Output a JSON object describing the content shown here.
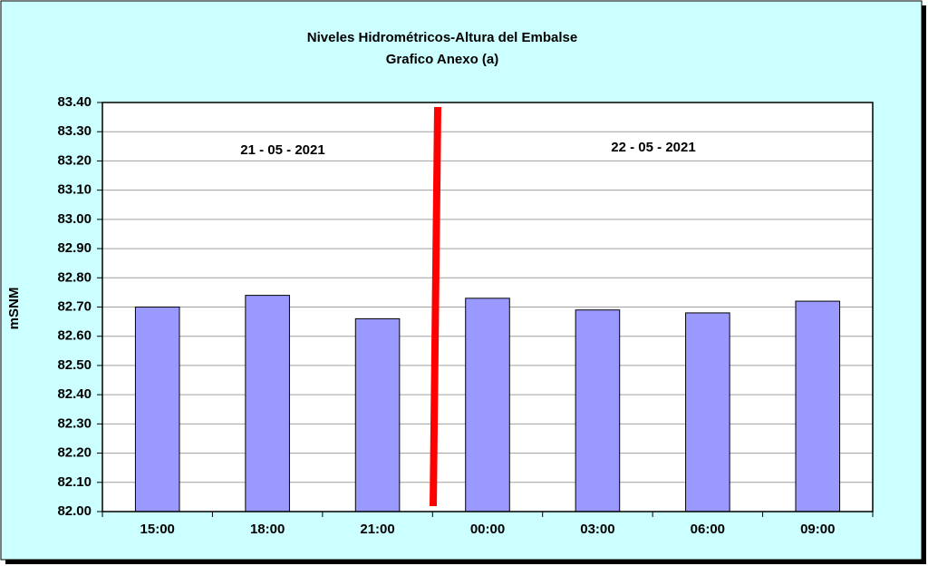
{
  "chart_data": {
    "type": "bar",
    "title": "Niveles Hidrométricos-Altura del Embalse",
    "subtitle": "Grafico Anexo (a)",
    "y_label": "mSNM",
    "annotations": [
      "21 - 05 - 2021",
      "22 - 05 - 2021"
    ],
    "categories": [
      "15:00",
      "18:00",
      "21:00",
      "00:00",
      "03:00",
      "06:00",
      "09:00"
    ],
    "values": [
      82.7,
      82.74,
      82.66,
      82.73,
      82.69,
      82.68,
      82.72
    ],
    "color": "#9999ff",
    "ylim": [
      82.0,
      83.4
    ],
    "yticks": [
      {
        "value": 82.0,
        "label": "82.00"
      },
      {
        "value": 82.1,
        "label": "82.10"
      },
      {
        "value": 82.2,
        "label": "82.20"
      },
      {
        "value": 82.3,
        "label": "82.30"
      },
      {
        "value": 82.4,
        "label": "82.40"
      },
      {
        "value": 82.5,
        "label": "82.50"
      },
      {
        "value": 82.6,
        "label": "82.60"
      },
      {
        "value": 82.7,
        "label": "82.70"
      },
      {
        "value": 82.8,
        "label": "82.80"
      },
      {
        "value": 82.9,
        "label": "82.90"
      },
      {
        "value": 83.0,
        "label": "83.00"
      },
      {
        "value": 83.1,
        "label": "83.10"
      },
      {
        "value": 83.2,
        "label": "83.20"
      },
      {
        "value": 83.3,
        "label": "83.30"
      },
      {
        "value": 83.4,
        "label": "83.40"
      }
    ],
    "grid": true
  }
}
